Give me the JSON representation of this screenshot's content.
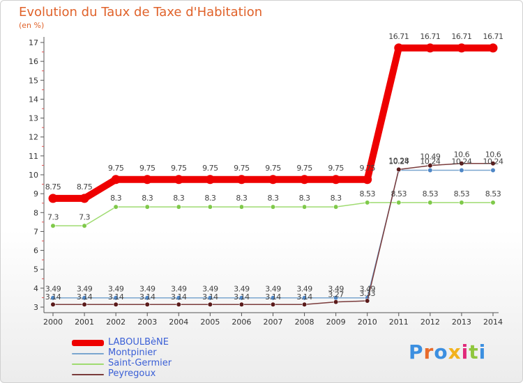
{
  "header": {
    "title": "Evolution du Taux de Taxe d'Habitation",
    "subtitle": "(en %)"
  },
  "brand": {
    "logo_text": "Proxiti",
    "letter_colors": [
      "#3c8fe0",
      "#e86a2a",
      "#3c8fe0",
      "#f2b21d",
      "#e0287a",
      "#8fc63d",
      "#3c8fe0"
    ]
  },
  "chart_data": {
    "type": "line",
    "title": "Evolution du Taux de Taxe d'Habitation",
    "subtitle": "(en %)",
    "xlabel": "",
    "ylabel": "",
    "x": [
      2000,
      2001,
      2002,
      2003,
      2004,
      2005,
      2006,
      2007,
      2008,
      2009,
      2010,
      2011,
      2012,
      2013,
      2014
    ],
    "ylim": [
      3,
      17
    ],
    "yticks": [
      3,
      4,
      5,
      6,
      7,
      8,
      9,
      10,
      11,
      12,
      13,
      14,
      15,
      16,
      17
    ],
    "grid": false,
    "legend_position": "bottom-left",
    "series": [
      {
        "name": "LABOULBèNE",
        "color": "#ee0000",
        "marker_color": "#ee0000",
        "values": [
          8.75,
          8.75,
          9.75,
          9.75,
          9.75,
          9.75,
          9.75,
          9.75,
          9.75,
          9.75,
          9.75,
          16.71,
          16.71,
          16.71,
          16.71
        ],
        "labels": [
          "8.75",
          "8.75",
          "9.75",
          "9.75",
          "9.75",
          "9.75",
          "9.75",
          "9.75",
          "9.75",
          "9.75",
          "9.75",
          "16.71",
          "16.71",
          "16.71",
          "16.71"
        ]
      },
      {
        "name": "Montpinier",
        "color": "#7aa6cf",
        "marker_color": "#4e86c6",
        "values": [
          3.49,
          3.49,
          3.49,
          3.49,
          3.49,
          3.49,
          3.49,
          3.49,
          3.49,
          3.49,
          3.49,
          10.24,
          10.24,
          10.24,
          10.24
        ],
        "labels": [
          "3.49",
          "3.49",
          "3.49",
          "3.49",
          "3.49",
          "3.49",
          "3.49",
          "3.49",
          "3.49",
          "3.49",
          "3.49",
          "10.24",
          "10.24",
          "10.24",
          "10.24"
        ]
      },
      {
        "name": "Saint-Germier",
        "color": "#9fdb70",
        "marker_color": "#7fc94a",
        "values": [
          7.3,
          7.3,
          8.3,
          8.3,
          8.3,
          8.3,
          8.3,
          8.3,
          8.3,
          8.3,
          8.53,
          8.53,
          8.53,
          8.53,
          8.53
        ],
        "labels": [
          "7.3",
          "7.3",
          "8.3",
          "8.3",
          "8.3",
          "8.3",
          "8.3",
          "8.3",
          "8.3",
          "8.3",
          "8.53",
          "8.53",
          "8.53",
          "8.53",
          "8.53"
        ]
      },
      {
        "name": "Peyregoux",
        "color": "#7a3b3b",
        "marker_color": "#5a1a1a",
        "values": [
          3.14,
          3.14,
          3.14,
          3.14,
          3.14,
          3.14,
          3.14,
          3.14,
          3.14,
          3.27,
          3.33,
          10.28,
          10.49,
          10.6,
          10.6
        ],
        "labels": [
          "3.14",
          "3.14",
          "3.14",
          "3.14",
          "3.14",
          "3.14",
          "3.14",
          "3.14",
          "3.14",
          "3.27",
          "3.33",
          "10.28",
          "10.49",
          "10.6",
          "10.6"
        ]
      }
    ]
  }
}
